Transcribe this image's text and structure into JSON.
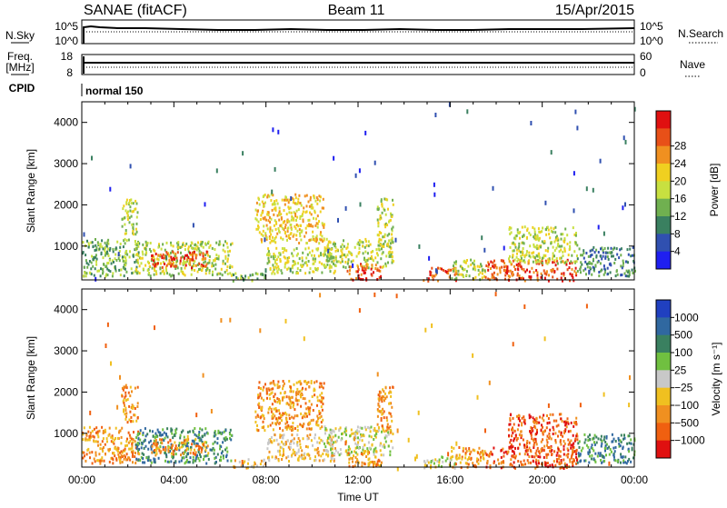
{
  "header": {
    "station": "SANAE (fitACF)",
    "beam": "Beam 11",
    "date": "15/Apr/2015"
  },
  "strip_panels": {
    "nsky": {
      "left_label": "N.Sky",
      "left_ticks": [
        "10^5",
        "10^0"
      ],
      "right_label": "N.Search",
      "right_ticks": [
        "10^5",
        "10^0"
      ]
    },
    "freq": {
      "left_label": "Freq.",
      "left_unit": "[MHz]",
      "left_ticks": [
        "18",
        "8"
      ],
      "right_label": "Nave",
      "right_ticks": [
        "60",
        "0"
      ]
    },
    "cpid": {
      "label": "CPID",
      "mode_text": "normal 150"
    }
  },
  "chart_data": [
    {
      "type": "heatmap",
      "name": "power",
      "ylabel": "Slant Range [km]",
      "xlabel": "",
      "x_ticks": [
        "00:00",
        "04:00",
        "08:00",
        "12:00",
        "16:00",
        "20:00",
        "00:00"
      ],
      "xlim": [
        0,
        24
      ],
      "ylim": [
        180,
        4500
      ],
      "y_ticks": [
        1000,
        2000,
        3000,
        4000
      ],
      "colorbar": {
        "label": "Power [dB]",
        "ticks": [
          "4",
          "8",
          "12",
          "16",
          "20",
          "24",
          "28"
        ],
        "colors": [
          "#1f1ff0",
          "#3050b0",
          "#3a8060",
          "#70b050",
          "#c8e040",
          "#f0d020",
          "#f09020",
          "#e85018",
          "#e01010"
        ]
      },
      "regions": [
        {
          "t0": 0.0,
          "t1": 2.5,
          "r0": 300,
          "r1": 1200,
          "level": 3
        },
        {
          "t0": 1.7,
          "t1": 2.4,
          "r0": 1300,
          "r1": 2200,
          "level": 4
        },
        {
          "t0": 2.3,
          "t1": 6.5,
          "r0": 300,
          "r1": 1150,
          "level": 4
        },
        {
          "t0": 3.0,
          "t1": 5.5,
          "r0": 500,
          "r1": 900,
          "level": 7
        },
        {
          "t0": 6.5,
          "t1": 8.0,
          "r0": 180,
          "r1": 400,
          "level": 3
        },
        {
          "t0": 7.5,
          "t1": 10.5,
          "r0": 1100,
          "r1": 2300,
          "level": 5
        },
        {
          "t0": 8.0,
          "t1": 11.0,
          "r0": 350,
          "r1": 1000,
          "level": 4
        },
        {
          "t0": 10.5,
          "t1": 13.5,
          "r0": 500,
          "r1": 1200,
          "level": 4
        },
        {
          "t0": 11.5,
          "t1": 13.0,
          "r0": 200,
          "r1": 600,
          "level": 7
        },
        {
          "t0": 12.8,
          "t1": 13.5,
          "r0": 1000,
          "r1": 2200,
          "level": 4
        },
        {
          "t0": 14.8,
          "t1": 16.3,
          "r0": 180,
          "r1": 500,
          "level": 7
        },
        {
          "t0": 16.0,
          "t1": 17.5,
          "r0": 200,
          "r1": 700,
          "level": 4
        },
        {
          "t0": 17.5,
          "t1": 21.5,
          "r0": 180,
          "r1": 700,
          "level": 7
        },
        {
          "t0": 18.5,
          "t1": 21.5,
          "r0": 600,
          "r1": 1500,
          "level": 4
        },
        {
          "t0": 21.5,
          "t1": 24.0,
          "r0": 300,
          "r1": 1000,
          "level": 2
        }
      ]
    },
    {
      "type": "heatmap",
      "name": "velocity",
      "ylabel": "Slant Range [km]",
      "xlabel": "Time UT",
      "x_ticks": [
        "00:00",
        "04:00",
        "08:00",
        "12:00",
        "16:00",
        "20:00",
        "00:00"
      ],
      "xlim": [
        0,
        24
      ],
      "ylim": [
        180,
        4500
      ],
      "y_ticks": [
        1000,
        2000,
        3000,
        4000
      ],
      "colorbar": {
        "label": "Velocity [m s⁻¹]",
        "ticks": [
          "1000",
          "500",
          "100",
          "25",
          "−25",
          "−100",
          "−500",
          "−1000"
        ],
        "colors": [
          "#2040c0",
          "#3068a0",
          "#3a8060",
          "#70c040",
          "#c8c8c8",
          "#f0c020",
          "#f09020",
          "#f06010",
          "#e01010"
        ]
      },
      "regions": [
        {
          "t0": 0.0,
          "t1": 2.5,
          "r0": 300,
          "r1": 1200,
          "level": 6
        },
        {
          "t0": 1.7,
          "t1": 2.4,
          "r0": 1300,
          "r1": 2200,
          "level": 6
        },
        {
          "t0": 2.3,
          "t1": 6.5,
          "r0": 300,
          "r1": 1150,
          "level": 2
        },
        {
          "t0": 3.0,
          "t1": 5.5,
          "r0": 500,
          "r1": 900,
          "level": 6
        },
        {
          "t0": 6.5,
          "t1": 8.0,
          "r0": 180,
          "r1": 400,
          "level": 5
        },
        {
          "t0": 7.5,
          "t1": 10.5,
          "r0": 1100,
          "r1": 2300,
          "level": 6
        },
        {
          "t0": 8.0,
          "t1": 11.0,
          "r0": 350,
          "r1": 1000,
          "level": 5
        },
        {
          "t0": 10.5,
          "t1": 13.5,
          "r0": 500,
          "r1": 1200,
          "level": 4
        },
        {
          "t0": 11.5,
          "t1": 13.0,
          "r0": 200,
          "r1": 600,
          "level": 6
        },
        {
          "t0": 12.8,
          "t1": 13.5,
          "r0": 1000,
          "r1": 2200,
          "level": 6
        },
        {
          "t0": 14.8,
          "t1": 16.3,
          "r0": 180,
          "r1": 500,
          "level": 4
        },
        {
          "t0": 16.0,
          "t1": 17.5,
          "r0": 200,
          "r1": 700,
          "level": 6
        },
        {
          "t0": 17.5,
          "t1": 21.5,
          "r0": 180,
          "r1": 700,
          "level": 7
        },
        {
          "t0": 18.5,
          "t1": 21.5,
          "r0": 600,
          "r1": 1500,
          "level": 7
        },
        {
          "t0": 21.5,
          "t1": 24.0,
          "r0": 300,
          "r1": 1000,
          "level": 2
        }
      ]
    }
  ]
}
